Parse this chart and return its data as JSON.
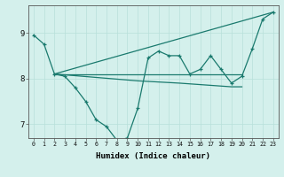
{
  "xlabel": "Humidex (Indice chaleur)",
  "ylabel": "",
  "bg_color": "#d4f0ec",
  "line_color": "#1a7a6e",
  "grid_color": "#b8e0da",
  "ylim": [
    6.7,
    9.6
  ],
  "xlim": [
    -0.5,
    23.5
  ],
  "yticks": [
    7,
    8,
    9
  ],
  "xticks": [
    0,
    1,
    2,
    3,
    4,
    5,
    6,
    7,
    8,
    9,
    10,
    11,
    12,
    13,
    14,
    15,
    16,
    17,
    18,
    19,
    20,
    21,
    22,
    23
  ],
  "line1_x": [
    0,
    1,
    2,
    3,
    4,
    5,
    6,
    7,
    8,
    9,
    10,
    11,
    12,
    13,
    14,
    15,
    16,
    17,
    18,
    19,
    20,
    21,
    22,
    23
  ],
  "line1_y": [
    8.95,
    8.75,
    8.1,
    8.05,
    7.8,
    7.5,
    7.1,
    6.95,
    6.65,
    6.7,
    7.35,
    8.45,
    8.6,
    8.5,
    8.5,
    8.1,
    8.2,
    8.5,
    8.2,
    7.9,
    8.05,
    8.65,
    9.3,
    9.45
  ],
  "line2_x": [
    2,
    23
  ],
  "line2_y": [
    8.1,
    9.45
  ],
  "line3_x": [
    2,
    20
  ],
  "line3_y": [
    8.1,
    8.1
  ],
  "line4_x": [
    2,
    10,
    14,
    19,
    20
  ],
  "line4_y": [
    8.1,
    7.95,
    7.9,
    7.82,
    7.82
  ]
}
